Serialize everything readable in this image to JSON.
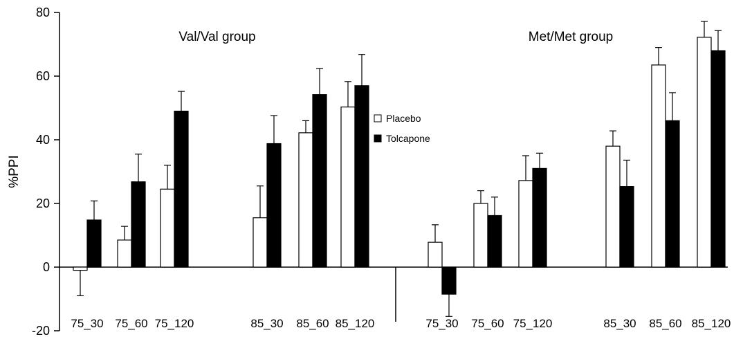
{
  "chart_data": {
    "type": "bar",
    "ylabel": "%PPI",
    "xlabel": "",
    "ylim": [
      -20,
      80
    ],
    "yticks": [
      -20,
      0,
      20,
      40,
      60,
      80
    ],
    "grid": false,
    "legend_position": "center",
    "groups": [
      {
        "label": "Val/Val group",
        "categories": [
          "75_30",
          "75_60",
          "75_120",
          "85_30",
          "85_60",
          "85_120"
        ],
        "series": [
          {
            "name": "Placebo",
            "values": [
              -1,
              8.5,
              24.5,
              15.5,
              42.2,
              50.3
            ],
            "errors": [
              8,
              4.3,
              7.5,
              10,
              3.8,
              8
            ]
          },
          {
            "name": "Tolcapone",
            "values": [
              14.8,
              26.8,
              49,
              38.8,
              54.2,
              57
            ],
            "errors": [
              6,
              8.7,
              6.2,
              8.8,
              8.2,
              9.8
            ]
          }
        ]
      },
      {
        "label": "Met/Met group",
        "categories": [
          "75_30",
          "75_60",
          "75_120",
          "85_30",
          "85_60",
          "85_120"
        ],
        "series": [
          {
            "name": "Placebo",
            "values": [
              7.8,
              20,
              27.2,
              38,
              63.5,
              72.2
            ],
            "errors": [
              5.5,
              4,
              7.8,
              4.8,
              5.5,
              5
            ]
          },
          {
            "name": "Tolcapone",
            "values": [
              -8.5,
              16.2,
              31,
              25.3,
              46,
              68
            ],
            "errors": [
              7,
              5.8,
              4.8,
              8.3,
              8.8,
              6.3
            ]
          }
        ]
      }
    ],
    "colors": {
      "Placebo": "#ffffff",
      "Tolcapone": "#000000"
    }
  }
}
